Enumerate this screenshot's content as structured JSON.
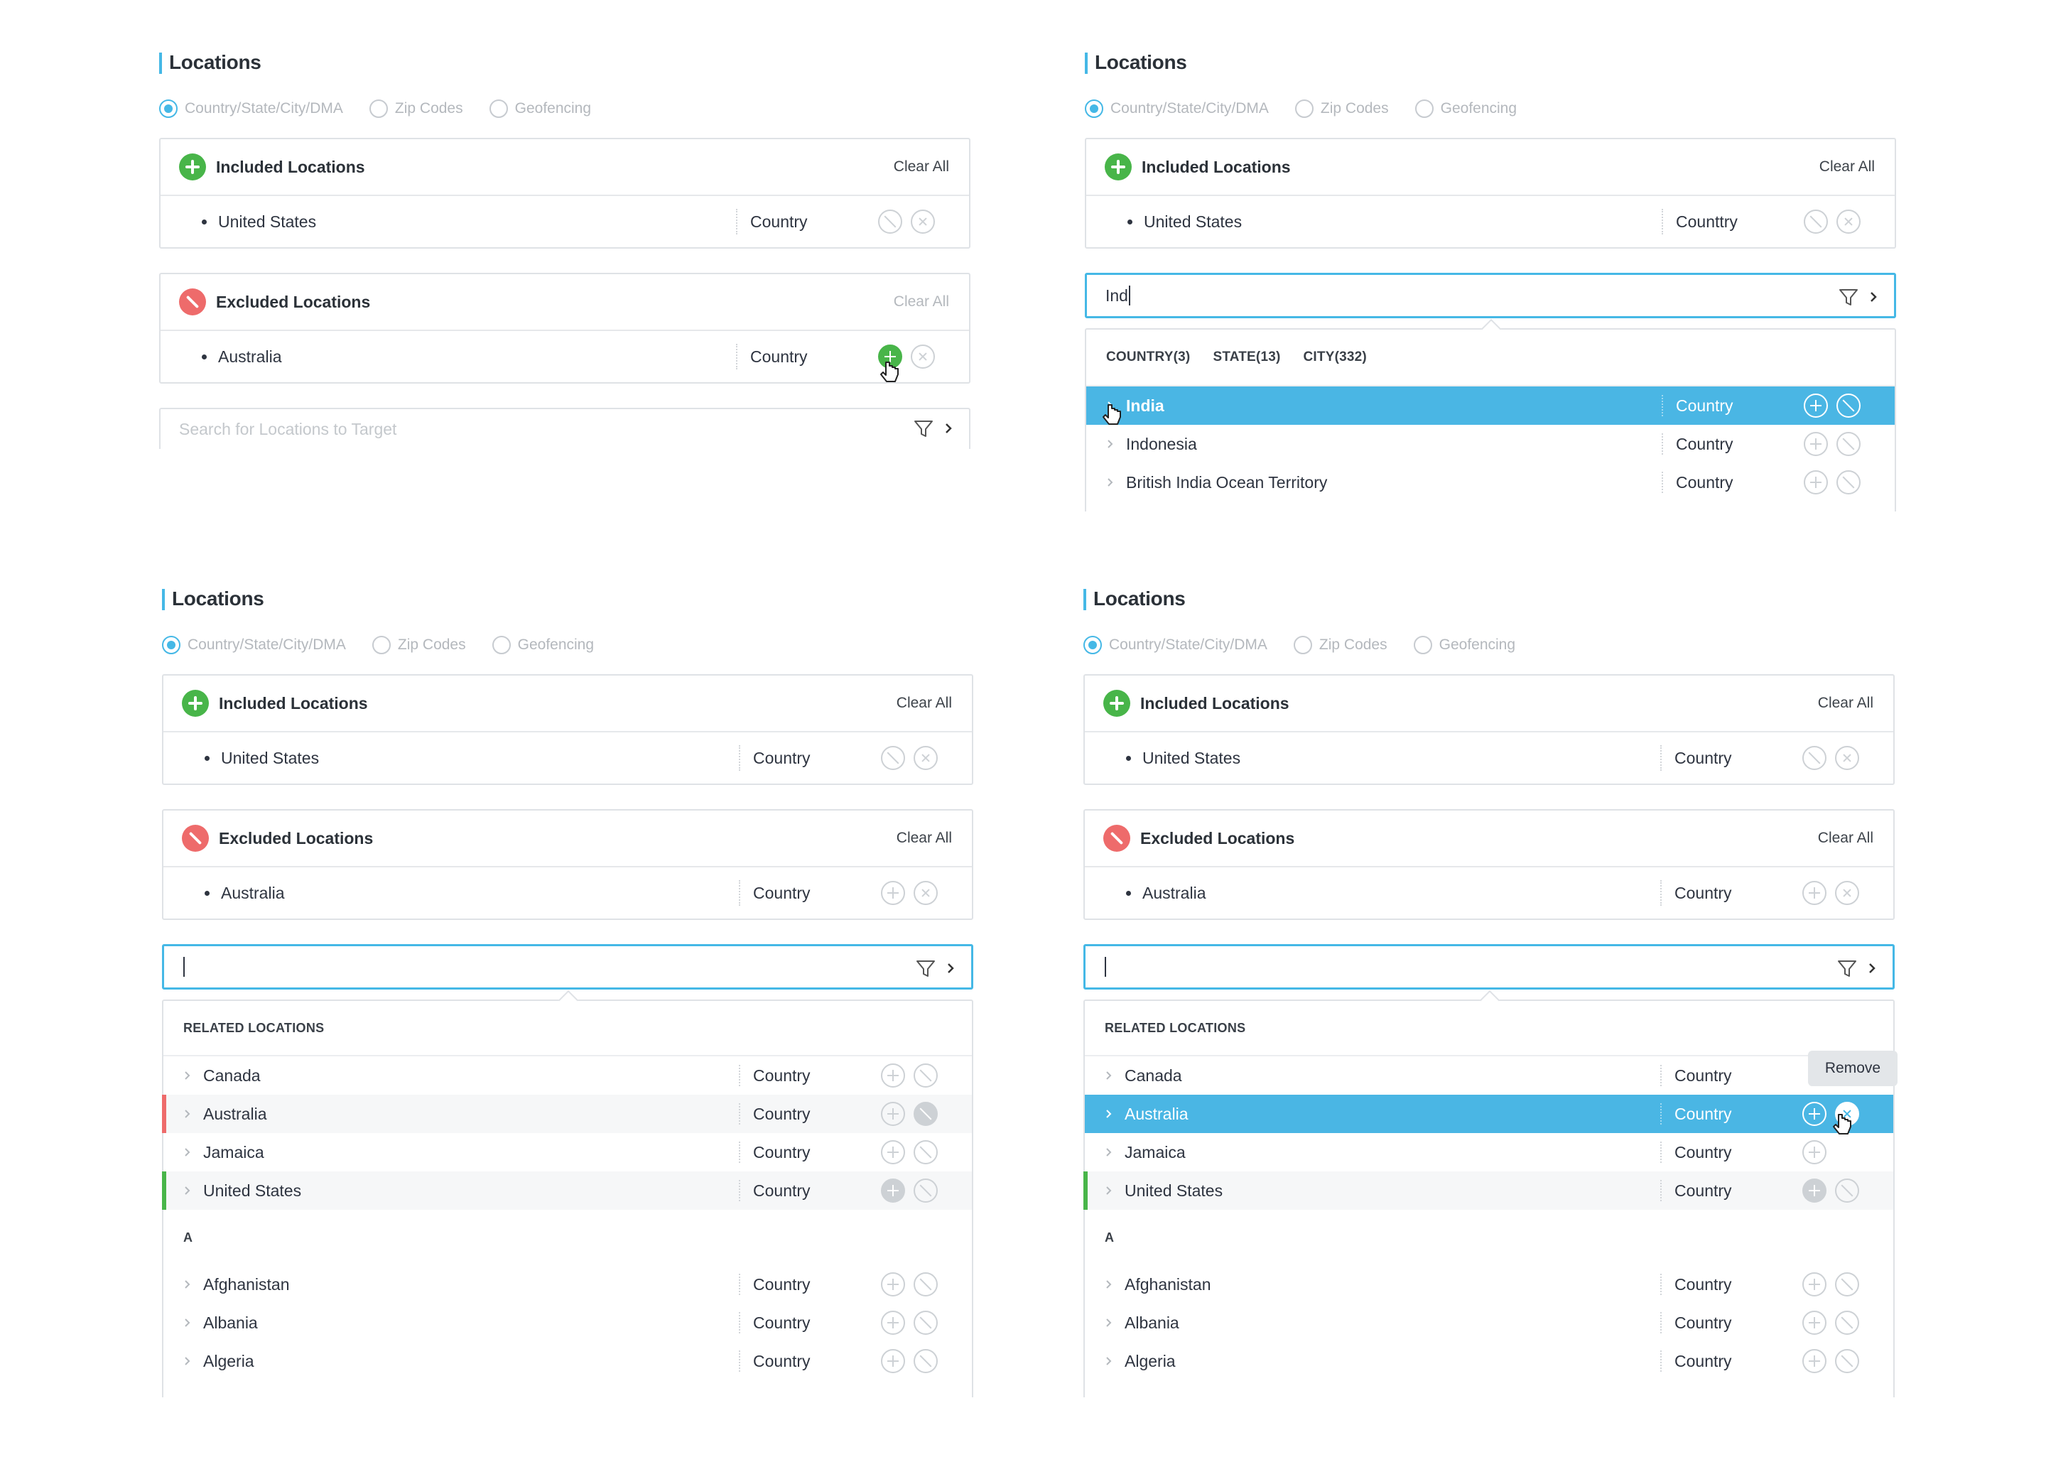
{
  "common": {
    "title": "Locations",
    "radios": [
      "Country/State/City/DMA",
      "Zip Codes",
      "Geofencing"
    ],
    "included_title": "Included Locations",
    "excluded_title": "Excluded Locations",
    "clear_all": "Clear All",
    "type_country": "Country",
    "type_country_typo": "Counttry",
    "us": "United States",
    "au": "Australia",
    "search_placeholder": "Search for Locations to Target",
    "related_header": "RELATED LOCATIONS",
    "group_a": "A",
    "tooltip_remove": "Remove"
  },
  "panel2": {
    "search_value": "Ind",
    "tabs": [
      "COUNTRY(3)",
      "STATE(13)",
      "CITY(332)"
    ],
    "results": [
      "India",
      "Indonesia",
      "British India Ocean Territory"
    ]
  },
  "related": [
    "Canada",
    "Australia",
    "Jamaica",
    "United States"
  ],
  "group_a_items": [
    "Afghanistan",
    "Albania",
    "Algeria"
  ],
  "colors": {
    "accent": "#45b8e6",
    "include": "#48b549",
    "exclude": "#ee6b6b",
    "highlight": "#4ab6e4"
  },
  "icons": [
    "plus-circle-icon",
    "ban-icon",
    "close-circle-icon",
    "filter-icon",
    "chevron-right-icon",
    "pointer-cursor-icon"
  ]
}
